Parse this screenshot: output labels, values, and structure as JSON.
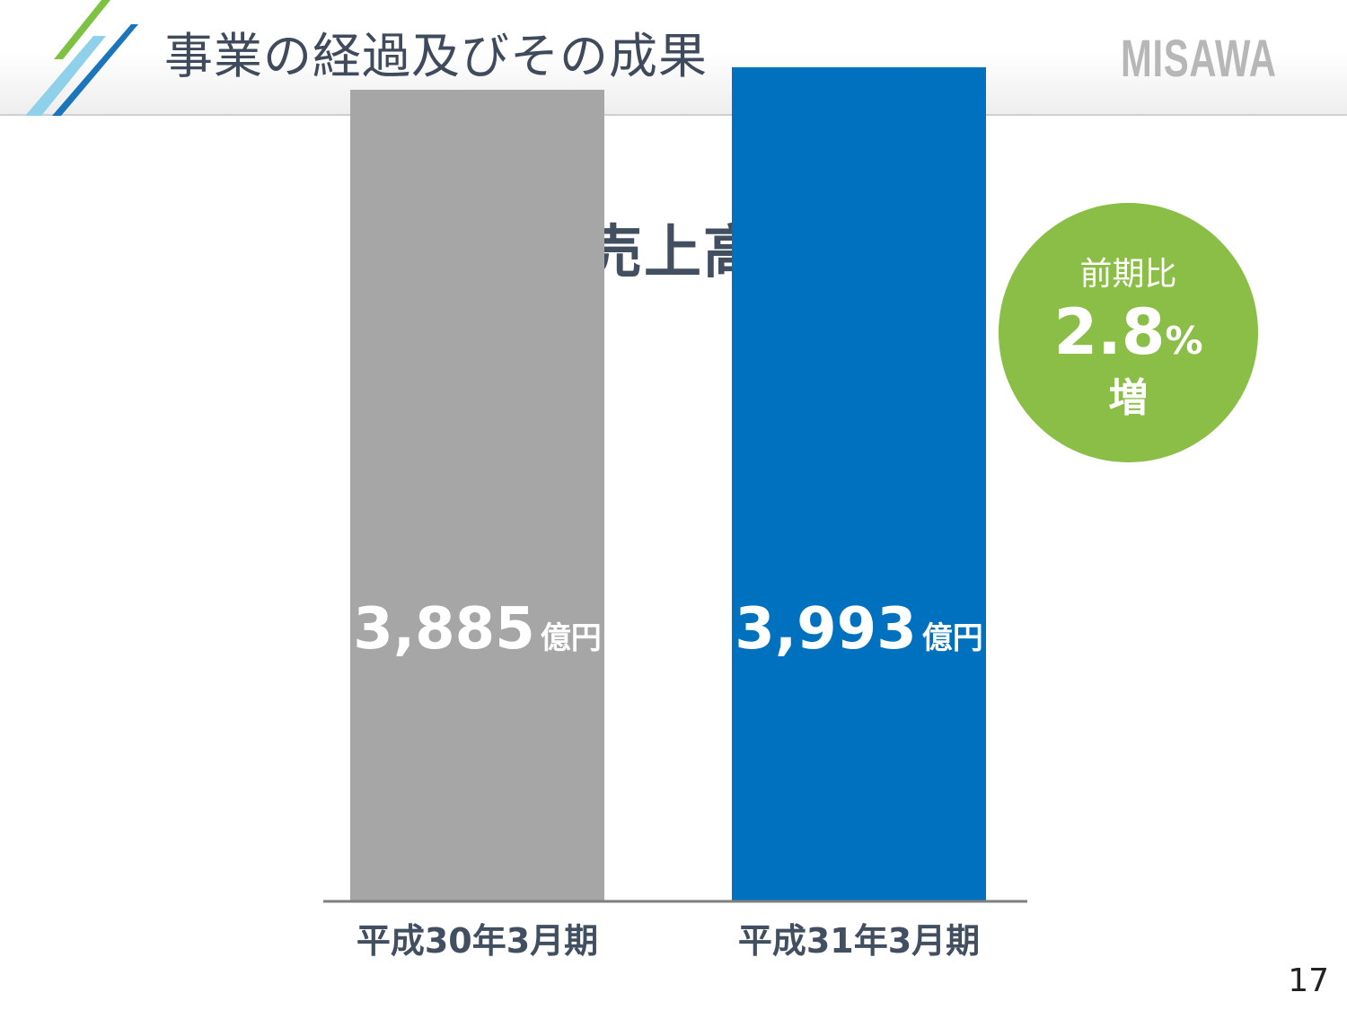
{
  "header": {
    "title": "事業の経過及びその成果",
    "logo_text": "MISAWA",
    "stripe_colors": [
      "#7dc242",
      "#8fd1ea",
      "#1b75bb"
    ]
  },
  "chart_data": {
    "type": "bar",
    "title": "売上高",
    "categories": [
      "平成30年3月期",
      "平成31年3月期"
    ],
    "values": [
      3885,
      3993
    ],
    "value_labels": [
      "3,885",
      "3,993"
    ],
    "value_unit": "億円",
    "bar_colors": [
      "#a6a6a6",
      "#0071be"
    ],
    "baseline_color": "#7f7f7f",
    "label_color": "#424f61",
    "ylim": [
      0,
      4100
    ],
    "grid": false,
    "legend": "none"
  },
  "yoy_badge": {
    "label": "前期比",
    "value": "2.8",
    "unit": "%",
    "direction": "増",
    "color": "#8abe47"
  },
  "page_number": "17"
}
